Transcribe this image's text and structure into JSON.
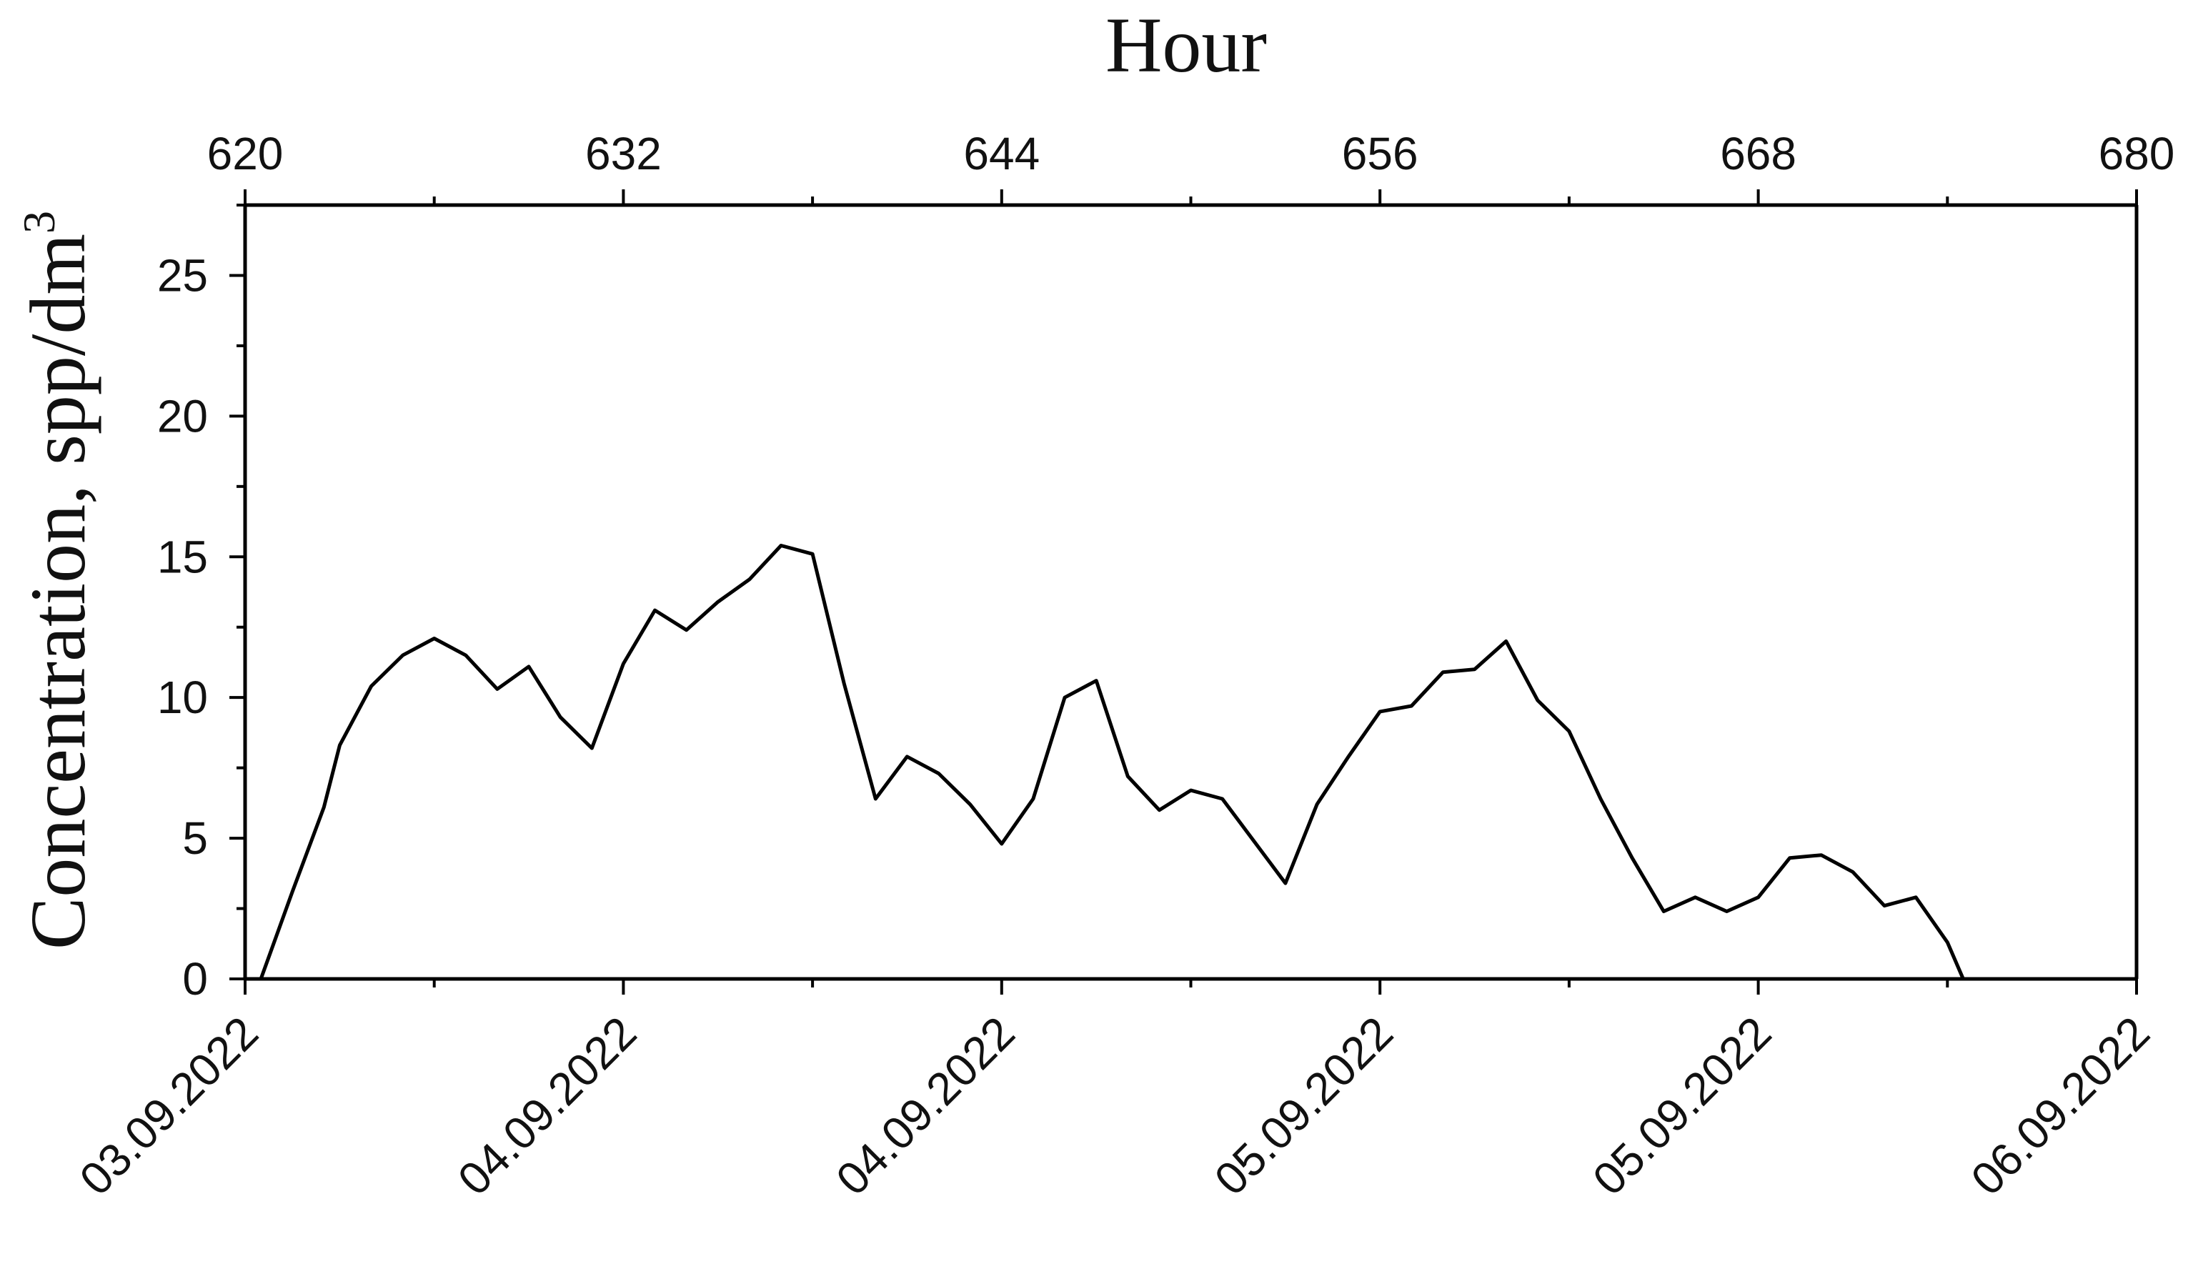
{
  "chart_data": {
    "type": "line",
    "top_axis_label": "Hour",
    "ylabel": "Concentration, spp/dm",
    "ylabel_superscript": "3",
    "x_range": [
      620,
      680
    ],
    "y_range": [
      0,
      27.5
    ],
    "top_ticks": [
      620,
      632,
      644,
      656,
      668,
      680
    ],
    "bottom_tick_labels": [
      "03.09.2022",
      "04.09.2022",
      "04.09.2022",
      "05.09.2022",
      "05.09.2022",
      "06.09.2022"
    ],
    "y_ticks": [
      0,
      5,
      10,
      15,
      20,
      25
    ],
    "grid": false,
    "series": [
      {
        "color": "#000000",
        "x": [
          620.5,
          621.5,
          622.5,
          623,
          624,
          625,
          626,
          627,
          628,
          629,
          630,
          631,
          632,
          633,
          634,
          635,
          636,
          637,
          638,
          639,
          640,
          641,
          642,
          643,
          644,
          645,
          646,
          647,
          648,
          649,
          650,
          651,
          652,
          653,
          654,
          655,
          656,
          657,
          658,
          659,
          660,
          661,
          662,
          663,
          664,
          665,
          666,
          667,
          668,
          669,
          670,
          671,
          672,
          673,
          674,
          674.5
        ],
        "y": [
          0,
          3.1,
          6.1,
          8.3,
          10.4,
          11.5,
          12.1,
          11.5,
          10.3,
          11.1,
          9.3,
          8.2,
          11.2,
          13.1,
          12.4,
          13.4,
          14.2,
          15.4,
          15.1,
          10.5,
          6.4,
          7.9,
          7.3,
          6.2,
          4.8,
          6.4,
          10.0,
          10.6,
          7.2,
          6.0,
          6.7,
          6.4,
          4.9,
          3.4,
          6.2,
          7.9,
          9.5,
          9.7,
          10.9,
          11.0,
          12.0,
          9.9,
          8.8,
          6.4,
          4.3,
          2.4,
          2.9,
          2.4,
          2.9,
          4.3,
          4.4,
          3.8,
          2.6,
          2.9,
          1.3,
          0
        ]
      }
    ]
  }
}
